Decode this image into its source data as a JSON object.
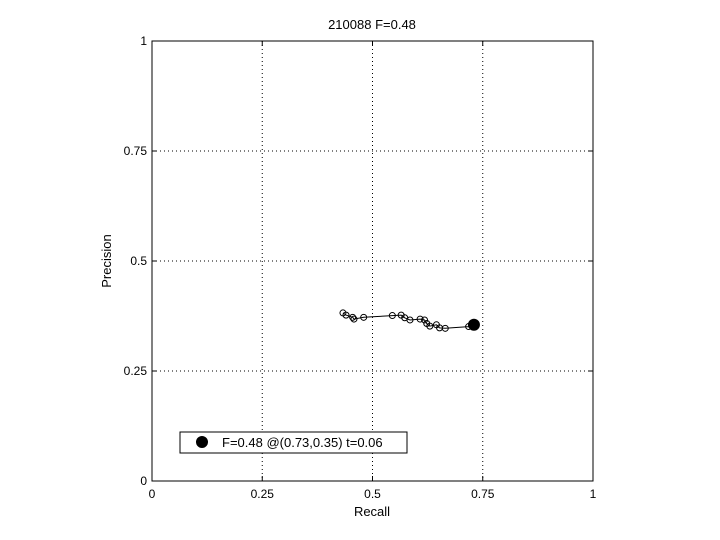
{
  "chart_data": {
    "type": "line",
    "title": "210088 F=0.48",
    "xlabel": "Recall",
    "ylabel": "Precision",
    "xlim": [
      0,
      1
    ],
    "ylim": [
      0,
      1
    ],
    "xticks": [
      0,
      0.25,
      0.5,
      0.75,
      1
    ],
    "yticks": [
      0,
      0.25,
      0.5,
      0.75,
      1
    ],
    "xtick_labels": [
      "0",
      "0.25",
      "0.5",
      "0.75",
      "1"
    ],
    "ytick_labels": [
      "0",
      "0.25",
      "0.5",
      "0.75",
      "1"
    ],
    "grid": true,
    "grid_style": "dotted",
    "series": [
      {
        "marker": "open-circle",
        "color": "#000000",
        "points": [
          {
            "x": 0.433,
            "y": 0.382
          },
          {
            "x": 0.44,
            "y": 0.377
          },
          {
            "x": 0.455,
            "y": 0.372
          },
          {
            "x": 0.458,
            "y": 0.368
          },
          {
            "x": 0.48,
            "y": 0.372
          },
          {
            "x": 0.545,
            "y": 0.376
          },
          {
            "x": 0.565,
            "y": 0.377
          },
          {
            "x": 0.573,
            "y": 0.371
          },
          {
            "x": 0.585,
            "y": 0.366
          },
          {
            "x": 0.608,
            "y": 0.368
          },
          {
            "x": 0.618,
            "y": 0.366
          },
          {
            "x": 0.623,
            "y": 0.358
          },
          {
            "x": 0.63,
            "y": 0.352
          },
          {
            "x": 0.645,
            "y": 0.355
          },
          {
            "x": 0.652,
            "y": 0.348
          },
          {
            "x": 0.665,
            "y": 0.347
          },
          {
            "x": 0.718,
            "y": 0.351
          },
          {
            "x": 0.726,
            "y": 0.354
          }
        ]
      }
    ],
    "best_point": {
      "x": 0.73,
      "y": 0.355,
      "marker": "filled-circle"
    },
    "legend": {
      "placement": "bottom-left",
      "entries": [
        {
          "label": "F=0.48 @(0.73,0.35) t=0.06",
          "marker": "filled-circle"
        }
      ]
    }
  }
}
